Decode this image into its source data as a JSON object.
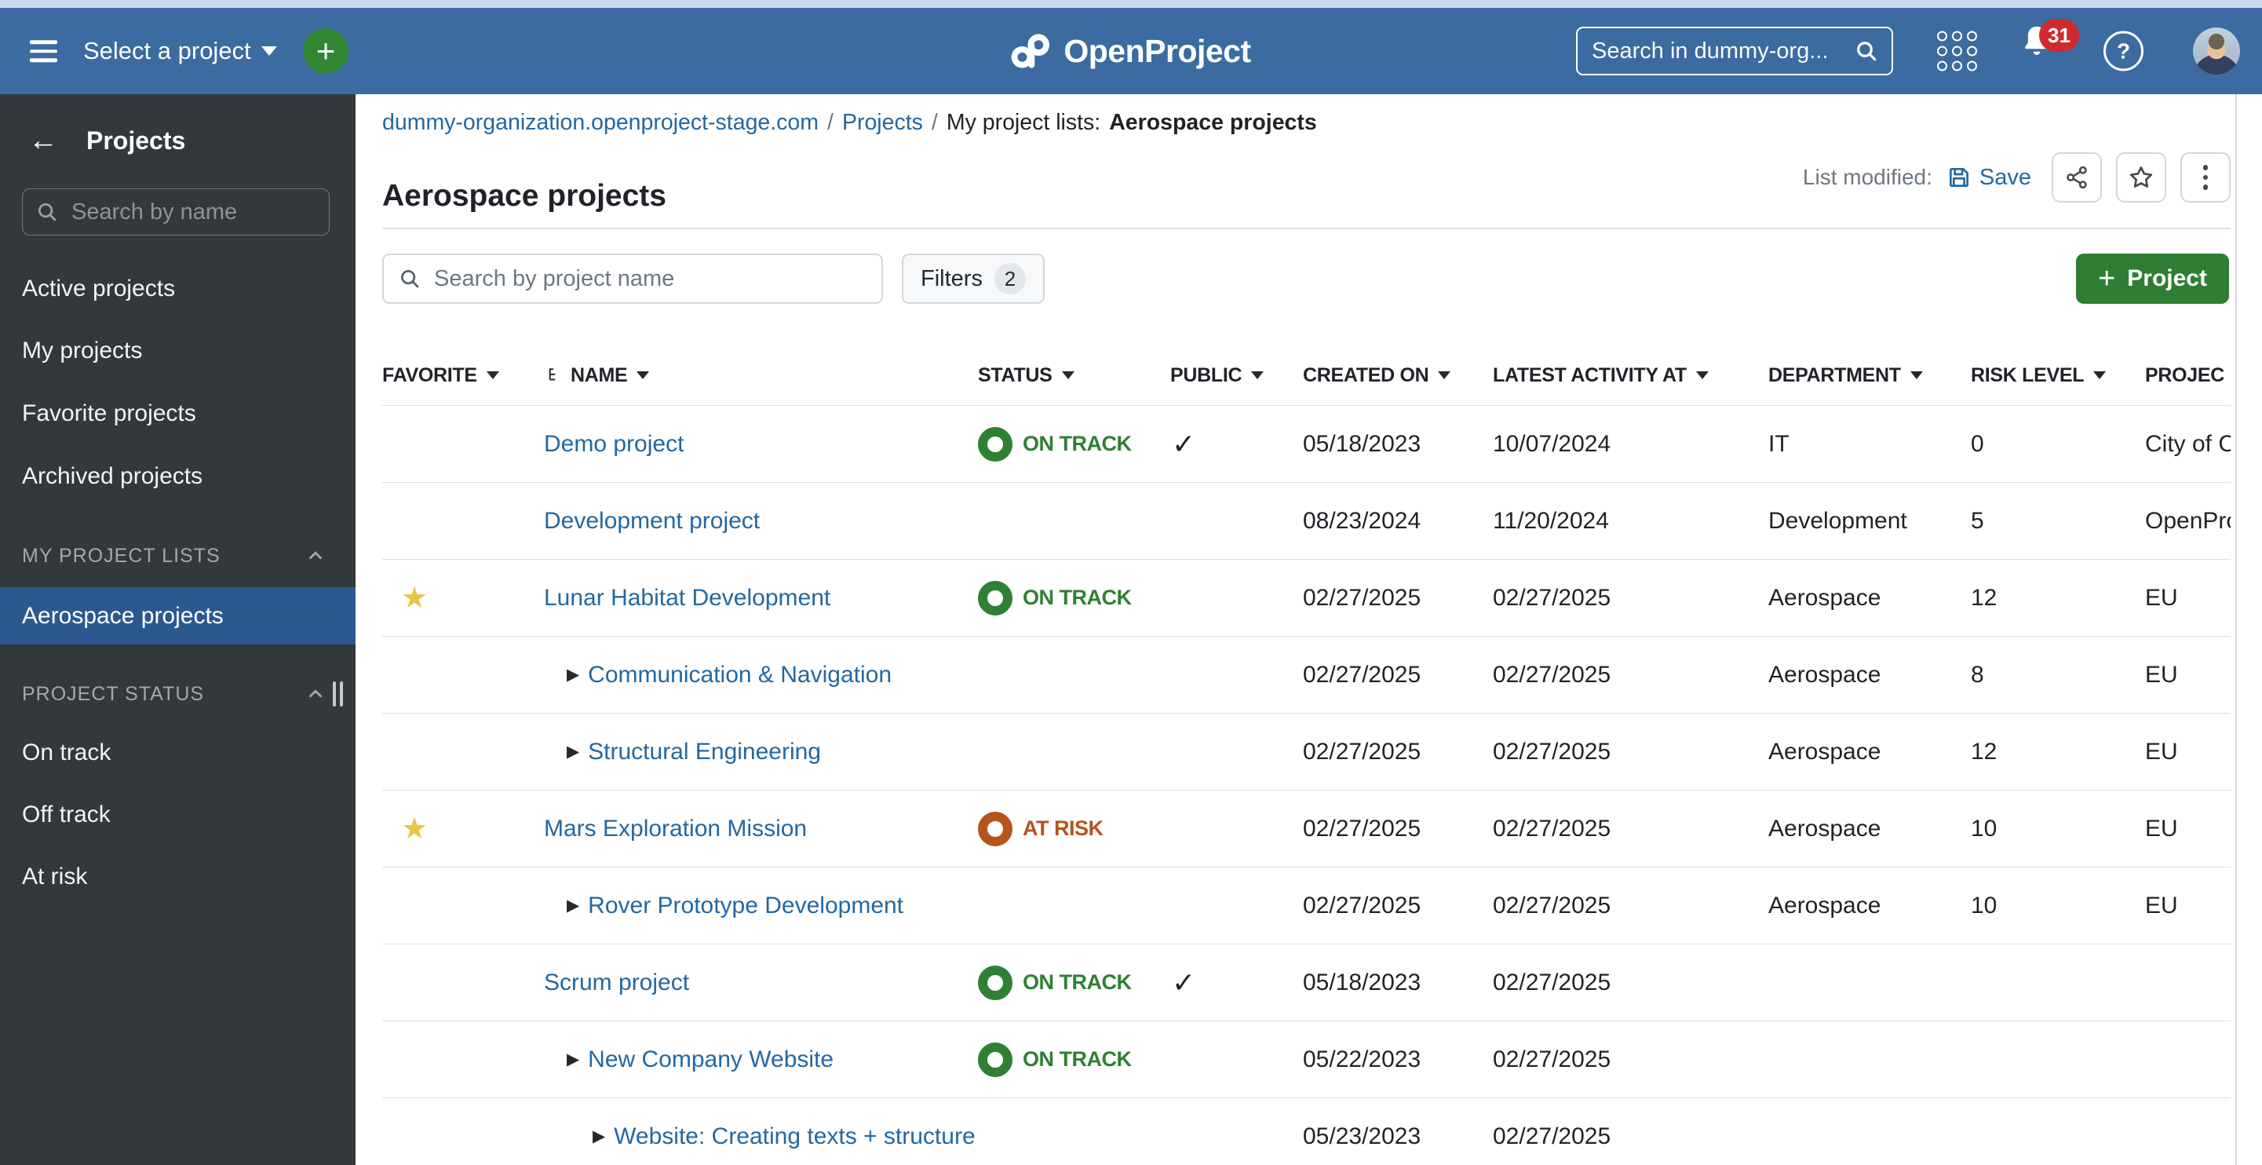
{
  "colors": {
    "topbar_blue": "#3B6BA0",
    "sidebar_bg": "#32383C",
    "selected_item_blue": "#2B598F",
    "link_blue": "#2268A2",
    "button_green": "#2F7E33",
    "status_on_track_green": "#2E8033",
    "status_at_risk_orange": "#B5541B",
    "favorite_star_yellow": "#E9C547",
    "notification_badge_red": "#D02A30"
  },
  "icons": {
    "favorite": "★",
    "expand": "▶",
    "public_check": "✓",
    "plus": "+"
  },
  "topbar": {
    "select_project": "Select a project",
    "logo": "OpenProject",
    "search_placeholder": "Search in dummy-org...",
    "notification_count": "31",
    "help_label": "?"
  },
  "sidebar": {
    "title": "Projects",
    "search_placeholder": "Search by name",
    "items": [
      "Active projects",
      "My projects",
      "Favorite projects",
      "Archived projects"
    ],
    "my_project_lists_label": "MY PROJECT LISTS",
    "selected_list": "Aerospace projects",
    "project_status_label": "PROJECT STATUS",
    "status_items": [
      "On track",
      "Off track",
      "At risk"
    ]
  },
  "breadcrumb": {
    "host": "dummy-organization.openproject-stage.com",
    "separator": "/",
    "projects": "Projects",
    "current_prefix": "My project lists:",
    "current": "Aerospace projects"
  },
  "page": {
    "title": "Aerospace projects",
    "list_modified_label": "List modified:",
    "save_label": "Save"
  },
  "toolbar": {
    "search_placeholder": "Search by project name",
    "filters_label": "Filters",
    "filters_count": "2",
    "new_project_label": "Project"
  },
  "table": {
    "columns": [
      {
        "id": "favorite",
        "label": "FAVORITE",
        "caret": true
      },
      {
        "id": "name",
        "label": "NAME",
        "caret": true,
        "sort_icon": true
      },
      {
        "id": "status",
        "label": "STATUS",
        "caret": true
      },
      {
        "id": "public",
        "label": "PUBLIC",
        "caret": true
      },
      {
        "id": "created-on",
        "label": "CREATED ON",
        "caret": true
      },
      {
        "id": "latest-activity-at",
        "label": "LATEST ACTIVITY AT",
        "caret": true
      },
      {
        "id": "department",
        "label": "DEPARTMENT",
        "caret": true
      },
      {
        "id": "risk-level",
        "label": "RISK LEVEL",
        "caret": true
      },
      {
        "id": "project",
        "label": "PROJEC",
        "caret": false
      }
    ],
    "rows": [
      {
        "name": "Demo project",
        "level": 0,
        "arrow": false,
        "favorite": false,
        "status": "ON TRACK",
        "status_kind": "on-track",
        "public": true,
        "created_on": "05/18/2023",
        "latest_activity_at": "10/07/2024",
        "department": "IT",
        "risk_level": "0",
        "project": "City of C"
      },
      {
        "name": "Development project",
        "level": 0,
        "arrow": false,
        "favorite": false,
        "status": null,
        "status_kind": null,
        "public": false,
        "created_on": "08/23/2024",
        "latest_activity_at": "11/20/2024",
        "department": "Development",
        "risk_level": "5",
        "project": "OpenPro"
      },
      {
        "name": "Lunar Habitat Development",
        "level": 0,
        "arrow": false,
        "favorite": true,
        "status": "ON TRACK",
        "status_kind": "on-track",
        "public": false,
        "created_on": "02/27/2025",
        "latest_activity_at": "02/27/2025",
        "department": "Aerospace",
        "risk_level": "12",
        "project": "EU"
      },
      {
        "name": "Communication & Navigation",
        "level": 1,
        "arrow": true,
        "favorite": false,
        "status": null,
        "status_kind": null,
        "public": false,
        "created_on": "02/27/2025",
        "latest_activity_at": "02/27/2025",
        "department": "Aerospace",
        "risk_level": "8",
        "project": "EU"
      },
      {
        "name": "Structural Engineering",
        "level": 1,
        "arrow": true,
        "favorite": false,
        "status": null,
        "status_kind": null,
        "public": false,
        "created_on": "02/27/2025",
        "latest_activity_at": "02/27/2025",
        "department": "Aerospace",
        "risk_level": "12",
        "project": "EU"
      },
      {
        "name": "Mars Exploration Mission",
        "level": 0,
        "arrow": false,
        "favorite": true,
        "status": "AT RISK",
        "status_kind": "at-risk",
        "public": false,
        "created_on": "02/27/2025",
        "latest_activity_at": "02/27/2025",
        "department": "Aerospace",
        "risk_level": "10",
        "project": "EU"
      },
      {
        "name": "Rover Prototype Development",
        "level": 1,
        "arrow": true,
        "favorite": false,
        "status": null,
        "status_kind": null,
        "public": false,
        "created_on": "02/27/2025",
        "latest_activity_at": "02/27/2025",
        "department": "Aerospace",
        "risk_level": "10",
        "project": "EU"
      },
      {
        "name": "Scrum project",
        "level": 0,
        "arrow": false,
        "favorite": false,
        "status": "ON TRACK",
        "status_kind": "on-track",
        "public": true,
        "created_on": "05/18/2023",
        "latest_activity_at": "02/27/2025",
        "department": "",
        "risk_level": "",
        "project": ""
      },
      {
        "name": "New Company Website",
        "level": 1,
        "arrow": true,
        "favorite": false,
        "status": "ON TRACK",
        "status_kind": "on-track",
        "public": false,
        "created_on": "05/22/2023",
        "latest_activity_at": "02/27/2025",
        "department": "",
        "risk_level": "",
        "project": ""
      },
      {
        "name": "Website: Creating texts + structure",
        "level": 2,
        "arrow": true,
        "favorite": false,
        "status": null,
        "status_kind": null,
        "public": false,
        "created_on": "05/23/2023",
        "latest_activity_at": "02/27/2025",
        "department": "",
        "risk_level": "",
        "project": ""
      }
    ]
  }
}
